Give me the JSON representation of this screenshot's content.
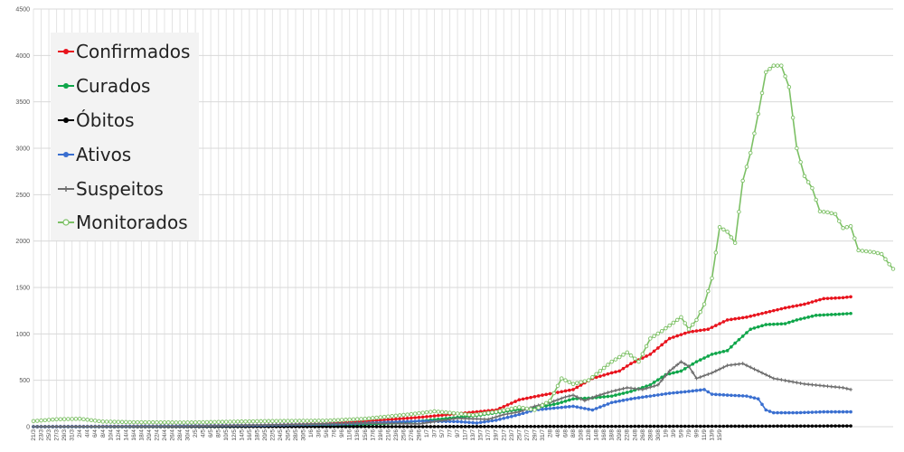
{
  "chart_data": {
    "type": "line",
    "title": "",
    "xlabel": "",
    "ylabel": "",
    "ylim": [
      0,
      4500
    ],
    "ytick_values": [
      0,
      500,
      1000,
      1500,
      2000,
      2500,
      3000,
      3500,
      4000,
      4500
    ],
    "ytick_labels": [
      "0",
      "500",
      "1000",
      "1500",
      "2000",
      "2500",
      "3000",
      "3500",
      "4000",
      "4500"
    ],
    "grid": true,
    "legend_position": "top-left",
    "x_tick_labels": [
      "21/3",
      "23/3",
      "25/3",
      "27/3",
      "29/3",
      "31/3",
      "2/4",
      "4/4",
      "6/4",
      "8/4",
      "10/4",
      "12/4",
      "14/4",
      "16/4",
      "18/4",
      "20/4",
      "22/4",
      "24/4",
      "26/4",
      "28/4",
      "30/4",
      "2/5",
      "4/5",
      "6/5",
      "8/5",
      "10/5",
      "12/5",
      "14/5",
      "16/5",
      "18/5",
      "20/5",
      "22/5",
      "24/5",
      "26/5",
      "28/5",
      "30/5",
      "1/6",
      "3/6",
      "5/6",
      "7/6",
      "9/6",
      "11/6",
      "13/6",
      "15/6",
      "17/6",
      "19/6",
      "21/6",
      "23/6",
      "25/6",
      "27/6",
      "29/6",
      "1/7",
      "3/7",
      "5/7",
      "7/7",
      "9/7",
      "11/7",
      "13/7",
      "15/7",
      "17/7",
      "19/7",
      "21/7",
      "23/7",
      "25/7",
      "27/7",
      "29/7",
      "31/7",
      "2/8",
      "4/8",
      "6/8",
      "8/8",
      "10/8",
      "12/8",
      "14/8",
      "16/8",
      "18/8",
      "20/8",
      "22/8",
      "24/8",
      "26/8",
      "28/8",
      "30/8",
      "1/9",
      "3/9",
      "5/9",
      "7/9",
      "9/9",
      "11/9",
      "13/9",
      "15/9"
    ],
    "series": [
      {
        "name": "Confirmados",
        "color": "#e8131d",
        "keypoints": [
          [
            0,
            0
          ],
          [
            20,
            3
          ],
          [
            40,
            8
          ],
          [
            60,
            15
          ],
          [
            75,
            30
          ],
          [
            85,
            55
          ],
          [
            100,
            100
          ],
          [
            110,
            140
          ],
          [
            120,
            180
          ],
          [
            126,
            290
          ],
          [
            132,
            340
          ],
          [
            140,
            400
          ],
          [
            145,
            520
          ],
          [
            150,
            580
          ],
          [
            152,
            600
          ],
          [
            155,
            680
          ],
          [
            160,
            780
          ],
          [
            165,
            950
          ],
          [
            170,
            1020
          ],
          [
            175,
            1050
          ],
          [
            180,
            1150
          ],
          [
            185,
            1180
          ],
          [
            190,
            1230
          ],
          [
            195,
            1280
          ],
          [
            200,
            1320
          ],
          [
            205,
            1380
          ],
          [
            210,
            1390
          ],
          [
            212,
            1400
          ]
        ]
      },
      {
        "name": "Curados",
        "color": "#0fa64a",
        "keypoints": [
          [
            0,
            0
          ],
          [
            50,
            0
          ],
          [
            80,
            10
          ],
          [
            95,
            40
          ],
          [
            105,
            80
          ],
          [
            115,
            120
          ],
          [
            120,
            150
          ],
          [
            125,
            180
          ],
          [
            130,
            200
          ],
          [
            136,
            250
          ],
          [
            140,
            300
          ],
          [
            145,
            310
          ],
          [
            150,
            330
          ],
          [
            155,
            380
          ],
          [
            160,
            450
          ],
          [
            164,
            560
          ],
          [
            168,
            600
          ],
          [
            172,
            700
          ],
          [
            176,
            780
          ],
          [
            180,
            820
          ],
          [
            182,
            900
          ],
          [
            186,
            1050
          ],
          [
            190,
            1100
          ],
          [
            195,
            1110
          ],
          [
            198,
            1150
          ],
          [
            203,
            1200
          ],
          [
            208,
            1210
          ],
          [
            212,
            1220
          ]
        ]
      },
      {
        "name": "Óbitos",
        "color": "#000000",
        "keypoints": [
          [
            0,
            0
          ],
          [
            60,
            0
          ],
          [
            100,
            1
          ],
          [
            140,
            3
          ],
          [
            180,
            5
          ],
          [
            212,
            8
          ]
        ]
      },
      {
        "name": "Ativos",
        "color": "#3a6fd0",
        "keypoints": [
          [
            0,
            0
          ],
          [
            20,
            3
          ],
          [
            40,
            8
          ],
          [
            60,
            15
          ],
          [
            80,
            30
          ],
          [
            100,
            60
          ],
          [
            110,
            55
          ],
          [
            115,
            40
          ],
          [
            120,
            70
          ],
          [
            125,
            120
          ],
          [
            130,
            180
          ],
          [
            135,
            200
          ],
          [
            140,
            220
          ],
          [
            145,
            180
          ],
          [
            150,
            260
          ],
          [
            155,
            300
          ],
          [
            160,
            330
          ],
          [
            165,
            360
          ],
          [
            170,
            380
          ],
          [
            174,
            400
          ],
          [
            176,
            350
          ],
          [
            180,
            340
          ],
          [
            185,
            330
          ],
          [
            188,
            300
          ],
          [
            190,
            180
          ],
          [
            192,
            150
          ],
          [
            198,
            150
          ],
          [
            205,
            160
          ],
          [
            212,
            160
          ]
        ]
      },
      {
        "name": "Suspeitos",
        "color": "#6e6e6e",
        "keypoints": [
          [
            0,
            0
          ],
          [
            40,
            5
          ],
          [
            70,
            25
          ],
          [
            85,
            40
          ],
          [
            100,
            30
          ],
          [
            110,
            90
          ],
          [
            118,
            80
          ],
          [
            122,
            130
          ],
          [
            126,
            160
          ],
          [
            130,
            220
          ],
          [
            134,
            260
          ],
          [
            138,
            320
          ],
          [
            140,
            340
          ],
          [
            143,
            280
          ],
          [
            146,
            330
          ],
          [
            150,
            380
          ],
          [
            154,
            420
          ],
          [
            158,
            400
          ],
          [
            162,
            450
          ],
          [
            165,
            600
          ],
          [
            168,
            700
          ],
          [
            170,
            650
          ],
          [
            172,
            520
          ],
          [
            176,
            580
          ],
          [
            180,
            660
          ],
          [
            184,
            680
          ],
          [
            188,
            600
          ],
          [
            192,
            520
          ],
          [
            196,
            490
          ],
          [
            200,
            460
          ],
          [
            205,
            440
          ],
          [
            210,
            420
          ],
          [
            212,
            400
          ]
        ]
      },
      {
        "name": "Monitorados",
        "color": "#7cc065",
        "keypoints": [
          [
            0,
            60
          ],
          [
            6,
            80
          ],
          [
            12,
            85
          ],
          [
            18,
            55
          ],
          [
            26,
            48
          ],
          [
            40,
            45
          ],
          [
            60,
            60
          ],
          [
            76,
            65
          ],
          [
            86,
            85
          ],
          [
            98,
            135
          ],
          [
            104,
            165
          ],
          [
            108,
            150
          ],
          [
            114,
            125
          ],
          [
            120,
            160
          ],
          [
            126,
            210
          ],
          [
            130,
            180
          ],
          [
            134,
            280
          ],
          [
            137,
            520
          ],
          [
            140,
            460
          ],
          [
            144,
            500
          ],
          [
            147,
            600
          ],
          [
            150,
            700
          ],
          [
            154,
            800
          ],
          [
            157,
            700
          ],
          [
            160,
            950
          ],
          [
            163,
            1030
          ],
          [
            166,
            1120
          ],
          [
            168,
            1180
          ],
          [
            170,
            1050
          ],
          [
            172,
            1150
          ],
          [
            174,
            1320
          ],
          [
            176,
            1600
          ],
          [
            178,
            2150
          ],
          [
            180,
            2100
          ],
          [
            182,
            1980
          ],
          [
            184,
            2650
          ],
          [
            186,
            2950
          ],
          [
            188,
            3370
          ],
          [
            190,
            3820
          ],
          [
            192,
            3890
          ],
          [
            194,
            3890
          ],
          [
            196,
            3660
          ],
          [
            198,
            3000
          ],
          [
            200,
            2700
          ],
          [
            202,
            2570
          ],
          [
            204,
            2320
          ],
          [
            206,
            2310
          ],
          [
            208,
            2290
          ],
          [
            210,
            2140
          ],
          [
            212,
            2160
          ],
          [
            214,
            1900
          ],
          [
            216,
            1890
          ],
          [
            218,
            1880
          ],
          [
            220,
            1860
          ],
          [
            222,
            1750
          ],
          [
            223,
            1700
          ]
        ]
      }
    ]
  }
}
